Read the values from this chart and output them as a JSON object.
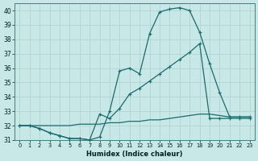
{
  "xlabel": "Humidex (Indice chaleur)",
  "bg_color": "#c8e8e8",
  "line_color": "#1a6b6b",
  "grid_color": "#b0d4d4",
  "xlim": [
    -0.5,
    23.5
  ],
  "ylim": [
    31.0,
    40.5
  ],
  "xticks": [
    0,
    1,
    2,
    3,
    4,
    5,
    6,
    7,
    8,
    9,
    10,
    11,
    12,
    13,
    14,
    15,
    16,
    17,
    18,
    19,
    20,
    21,
    22,
    23
  ],
  "yticks": [
    31,
    32,
    33,
    34,
    35,
    36,
    37,
    38,
    39,
    40
  ],
  "line1_x": [
    0,
    1,
    2,
    3,
    4,
    5,
    6,
    7,
    8,
    9,
    10,
    11,
    12,
    13,
    14,
    15,
    16,
    17,
    18,
    19,
    20,
    21,
    22,
    23
  ],
  "line1_y": [
    32.0,
    32.0,
    31.8,
    31.5,
    31.3,
    31.1,
    31.1,
    31.0,
    31.2,
    33.0,
    35.8,
    36.0,
    35.6,
    38.4,
    39.9,
    40.1,
    40.2,
    40.0,
    38.5,
    36.3,
    34.3,
    32.6,
    32.6,
    32.6
  ],
  "line2_x": [
    0,
    1,
    2,
    3,
    4,
    5,
    6,
    7,
    8,
    9,
    10,
    11,
    12,
    13,
    14,
    15,
    16,
    17,
    18,
    19,
    20,
    21,
    22,
    23
  ],
  "line2_y": [
    32.0,
    32.0,
    31.8,
    31.5,
    31.3,
    31.1,
    31.1,
    31.0,
    32.8,
    32.5,
    33.2,
    34.2,
    34.6,
    35.1,
    35.6,
    36.1,
    36.6,
    37.1,
    37.7,
    32.5,
    32.5,
    32.5,
    32.5,
    32.5
  ],
  "line3_x": [
    0,
    1,
    2,
    3,
    4,
    5,
    6,
    7,
    8,
    9,
    10,
    11,
    12,
    13,
    14,
    15,
    16,
    17,
    18,
    19,
    20,
    21,
    22,
    23
  ],
  "line3_y": [
    32.0,
    32.0,
    32.0,
    32.0,
    32.0,
    32.0,
    32.1,
    32.1,
    32.1,
    32.2,
    32.2,
    32.3,
    32.3,
    32.4,
    32.4,
    32.5,
    32.6,
    32.7,
    32.8,
    32.8,
    32.7,
    32.6,
    32.6,
    32.6
  ],
  "marker": "+",
  "markersize": 3.5,
  "linewidth": 0.9
}
